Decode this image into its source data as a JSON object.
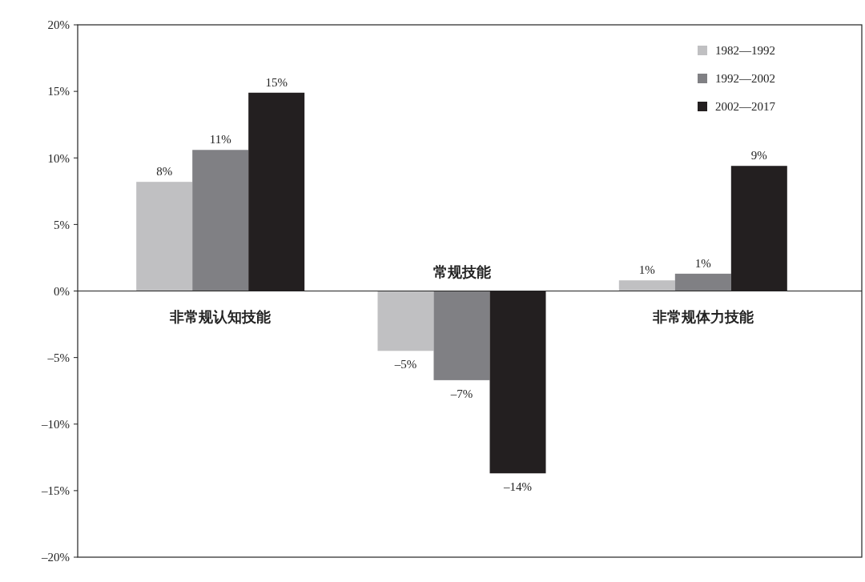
{
  "chart_data": {
    "type": "bar",
    "categories": [
      "非常规认知技能",
      "常规技能",
      "非常规体力技能"
    ],
    "series": [
      {
        "name": "1982—1992",
        "color": "#c0c0c2",
        "values": [
          8.2,
          -4.5,
          0.8
        ],
        "value_labels": [
          "8%",
          "–5%",
          "1%"
        ]
      },
      {
        "name": "1992—2002",
        "color": "#808084",
        "values": [
          10.6,
          -6.7,
          1.3
        ],
        "value_labels": [
          "11%",
          "–7%",
          "1%"
        ]
      },
      {
        "name": "2002—2017",
        "color": "#231f20",
        "values": [
          14.9,
          -13.7,
          9.4
        ],
        "value_labels": [
          "15%",
          "–14%",
          "9%"
        ]
      }
    ],
    "ylim": [
      -20,
      20
    ],
    "yticks": [
      {
        "value": -20,
        "label": "–20%"
      },
      {
        "value": -15,
        "label": "–15%"
      },
      {
        "value": -10,
        "label": "–10%"
      },
      {
        "value": -5,
        "label": "–5%"
      },
      {
        "value": 0,
        "label": "0%"
      },
      {
        "value": 5,
        "label": "5%"
      },
      {
        "value": 10,
        "label": "10%"
      },
      {
        "value": 15,
        "label": "15%"
      },
      {
        "value": 20,
        "label": "20%"
      }
    ],
    "legend": "top right",
    "grid": false
  }
}
